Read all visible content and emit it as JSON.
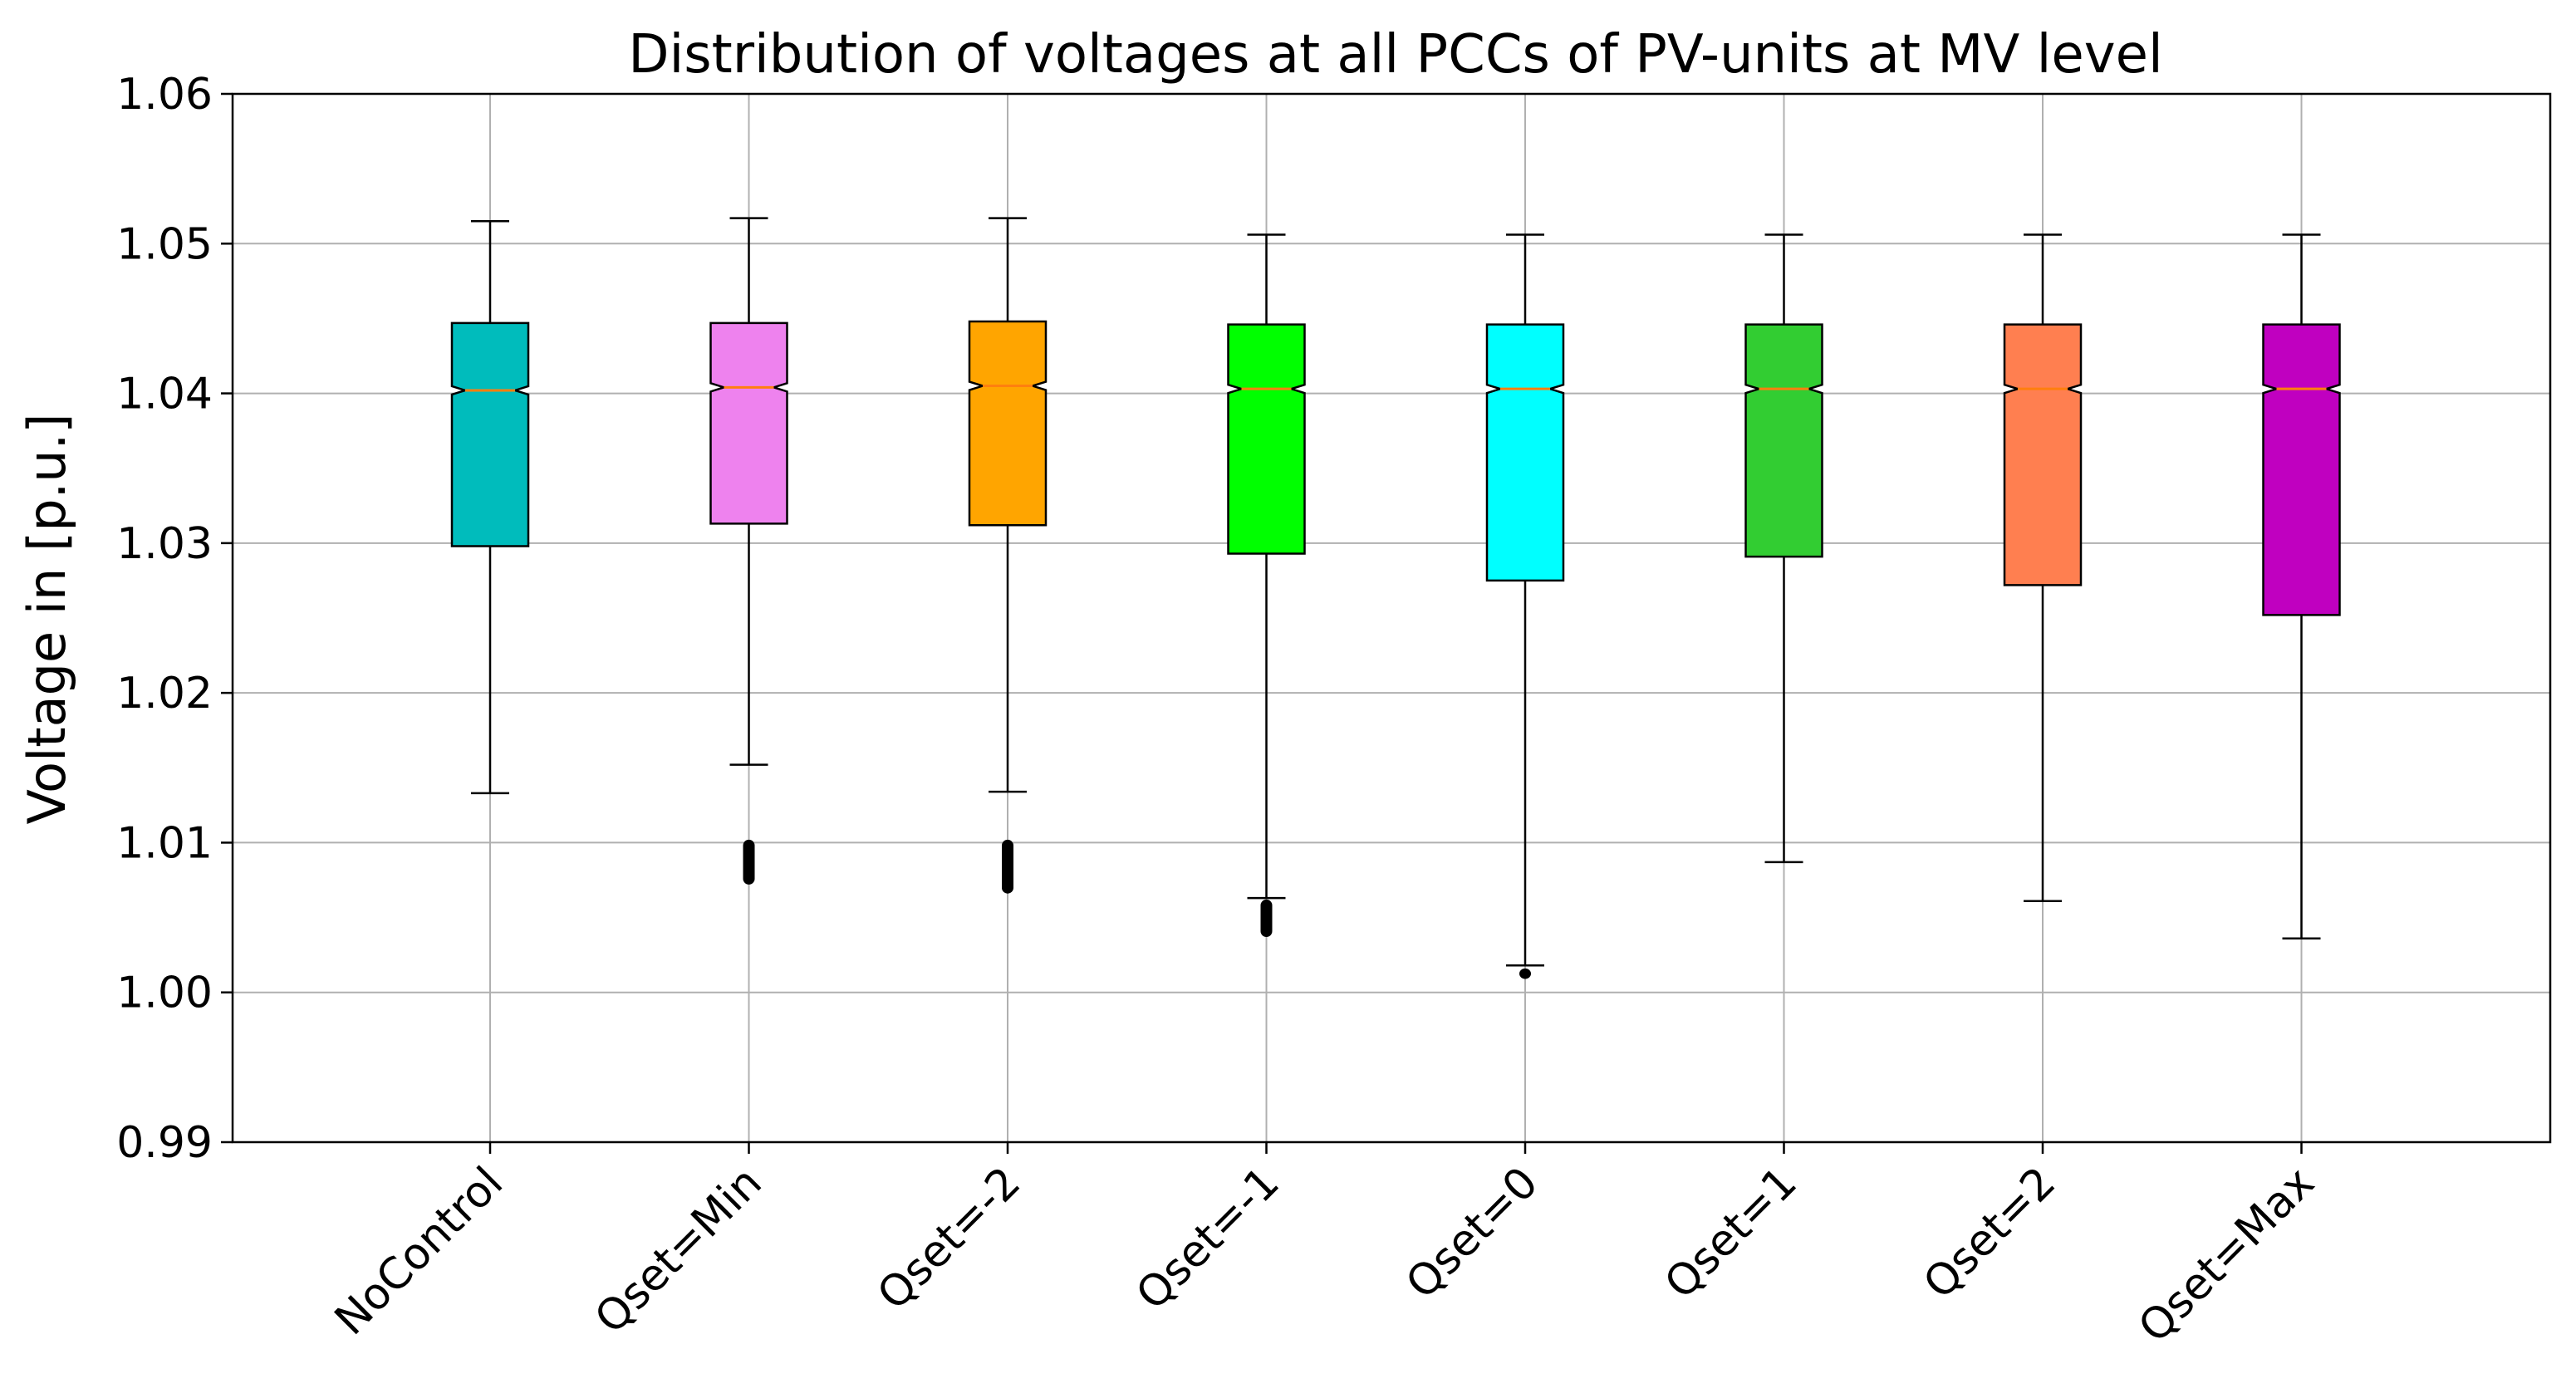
{
  "chart_data": {
    "type": "boxplot",
    "title": "Distribution of voltages at all PCCs of PV-units at MV level",
    "xlabel": "",
    "ylabel": "Voltage in [p.u.]",
    "ylim": [
      0.99,
      1.06
    ],
    "yticks": [
      "0.99",
      "1.00",
      "1.01",
      "1.02",
      "1.03",
      "1.04",
      "1.05",
      "1.06"
    ],
    "ytick_values": [
      0.99,
      1.0,
      1.01,
      1.02,
      1.03,
      1.04,
      1.05,
      1.06
    ],
    "grid": true,
    "notched": true,
    "categories": [
      "NoControl",
      "Qset=Min",
      "Qset=-2",
      "Qset=-1",
      "Qset=0",
      "Qset=1",
      "Qset=2",
      "Qset=Max"
    ],
    "series": [
      {
        "name": "NoControl",
        "color": "#00bcbc",
        "whisker_low": 1.0133,
        "q1": 1.0298,
        "median": 1.0402,
        "q3": 1.0447,
        "whisker_high": 1.0515,
        "fliers_range": null
      },
      {
        "name": "Qset=Min",
        "color": "#ee82ee",
        "whisker_low": 1.0152,
        "q1": 1.0313,
        "median": 1.0404,
        "q3": 1.0447,
        "whisker_high": 1.0517,
        "fliers_range": [
          1.0072,
          1.0102
        ]
      },
      {
        "name": "Qset=-2",
        "color": "#ffa500",
        "whisker_low": 1.0134,
        "q1": 1.0312,
        "median": 1.0405,
        "q3": 1.0448,
        "whisker_high": 1.0517,
        "fliers_range": [
          1.0066,
          1.0102
        ]
      },
      {
        "name": "Qset=-1",
        "color": "#00ff00",
        "whisker_low": 1.0063,
        "q1": 1.0293,
        "median": 1.0403,
        "q3": 1.0446,
        "whisker_high": 1.0506,
        "fliers_range": [
          1.0037,
          1.0062
        ]
      },
      {
        "name": "Qset=0",
        "color": "#00ffff",
        "whisker_low": 1.0018,
        "q1": 1.0275,
        "median": 1.0403,
        "q3": 1.0446,
        "whisker_high": 1.0506,
        "fliers_range": [
          1.0009,
          1.0016
        ]
      },
      {
        "name": "Qset=1",
        "color": "#32cd32",
        "whisker_low": 1.0087,
        "q1": 1.0291,
        "median": 1.0403,
        "q3": 1.0446,
        "whisker_high": 1.0506,
        "fliers_range": null
      },
      {
        "name": "Qset=2",
        "color": "#ff7f50",
        "whisker_low": 1.0061,
        "q1": 1.0272,
        "median": 1.0403,
        "q3": 1.0446,
        "whisker_high": 1.0506,
        "fliers_range": null
      },
      {
        "name": "Qset=Max",
        "color": "#c000c0",
        "whisker_low": 1.0036,
        "q1": 1.0252,
        "median": 1.0403,
        "q3": 1.0446,
        "whisker_high": 1.0506,
        "fliers_range": null
      }
    ]
  }
}
